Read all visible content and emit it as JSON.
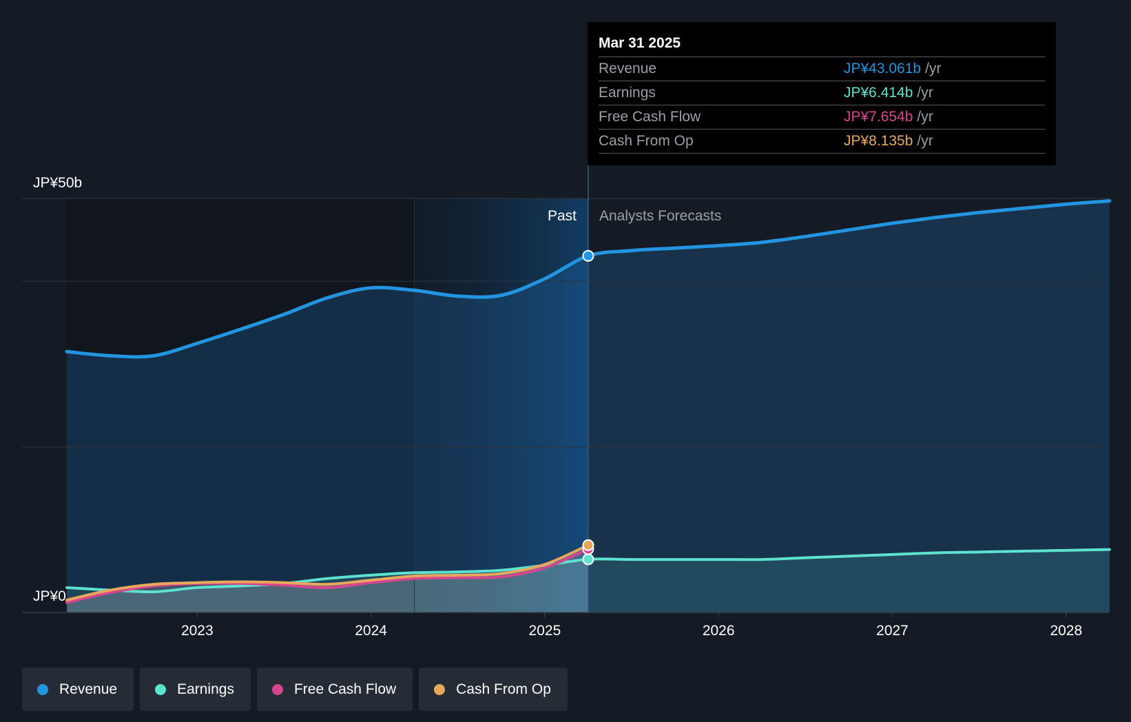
{
  "chart_data": {
    "type": "area",
    "ylim": [
      0,
      50
    ],
    "y_tick_labels": [
      "JP¥0",
      "JP¥50b"
    ],
    "x_tick_labels": [
      "2023",
      "2024",
      "2025",
      "2026",
      "2027",
      "2028"
    ],
    "x_tick_values": [
      2023.0,
      2024.0,
      2025.0,
      2026.0,
      2027.0,
      2028.0
    ],
    "x_range": [
      2022.0,
      2028.25
    ],
    "grid": true,
    "past_label": "Past",
    "forecast_label": "Analysts Forecasts",
    "divider_x": 2025.25,
    "highlight_start_x": 2024.25,
    "series": [
      {
        "name": "Revenue",
        "color": "#2394df",
        "x": [
          2022.25,
          2022.5,
          2022.75,
          2023.0,
          2023.25,
          2023.5,
          2023.75,
          2024.0,
          2024.25,
          2024.5,
          2024.75,
          2025.0,
          2025.25,
          2025.5,
          2025.75,
          2026.0,
          2026.25,
          2026.5,
          2026.75,
          2027.0,
          2027.25,
          2027.5,
          2027.75,
          2028.0,
          2028.25
        ],
        "values": [
          31.5,
          31.0,
          31.0,
          32.5,
          34.2,
          36.0,
          38.0,
          39.2,
          38.9,
          38.2,
          38.3,
          40.3,
          43.061,
          43.7,
          44.0,
          44.3,
          44.7,
          45.4,
          46.2,
          47.0,
          47.7,
          48.3,
          48.8,
          49.3,
          49.7
        ]
      },
      {
        "name": "Earnings",
        "color": "#5ee2cf",
        "x": [
          2022.25,
          2022.5,
          2022.75,
          2023.0,
          2023.25,
          2023.5,
          2023.75,
          2024.0,
          2024.25,
          2024.5,
          2024.75,
          2025.0,
          2025.25,
          2025.5,
          2025.75,
          2026.0,
          2026.25,
          2026.5,
          2026.75,
          2027.0,
          2027.25,
          2027.5,
          2027.75,
          2028.0,
          2028.25
        ],
        "values": [
          3.0,
          2.7,
          2.5,
          3.0,
          3.2,
          3.5,
          4.1,
          4.5,
          4.8,
          4.9,
          5.1,
          5.7,
          6.414,
          6.4,
          6.4,
          6.4,
          6.4,
          6.6,
          6.8,
          7.0,
          7.2,
          7.3,
          7.4,
          7.5,
          7.6
        ]
      },
      {
        "name": "Free Cash Flow",
        "color": "#d6468e",
        "x": [
          2022.25,
          2022.5,
          2022.75,
          2023.0,
          2023.25,
          2023.5,
          2023.75,
          2024.0,
          2024.25,
          2024.5,
          2024.75,
          2025.0,
          2025.25
        ],
        "values": [
          1.2,
          2.4,
          3.2,
          3.5,
          3.5,
          3.3,
          3.0,
          3.6,
          4.1,
          4.2,
          4.3,
          5.4,
          7.654
        ]
      },
      {
        "name": "Cash From Op",
        "color": "#e7a85c",
        "x": [
          2022.25,
          2022.5,
          2022.75,
          2023.0,
          2023.25,
          2023.5,
          2023.75,
          2024.0,
          2024.25,
          2024.5,
          2024.75,
          2025.0,
          2025.25
        ],
        "values": [
          1.5,
          2.7,
          3.4,
          3.6,
          3.7,
          3.6,
          3.4,
          3.9,
          4.4,
          4.5,
          4.7,
          5.8,
          8.135
        ]
      }
    ]
  },
  "tooltip": {
    "date": "Mar 31 2025",
    "rows": [
      {
        "label": "Revenue",
        "value": "JP¥43.061b",
        "unit": "/yr",
        "color": "#2394df"
      },
      {
        "label": "Earnings",
        "value": "JP¥6.414b",
        "unit": "/yr",
        "color": "#5ee2cf"
      },
      {
        "label": "Free Cash Flow",
        "value": "JP¥7.654b",
        "unit": "/yr",
        "color": "#d6468e"
      },
      {
        "label": "Cash From Op",
        "value": "JP¥8.135b",
        "unit": "/yr",
        "color": "#e7a85c"
      }
    ]
  },
  "legend": [
    {
      "label": "Revenue",
      "color": "#2394df"
    },
    {
      "label": "Earnings",
      "color": "#5ee2cf"
    },
    {
      "label": "Free Cash Flow",
      "color": "#d6468e"
    },
    {
      "label": "Cash From Op",
      "color": "#e7a85c"
    }
  ]
}
